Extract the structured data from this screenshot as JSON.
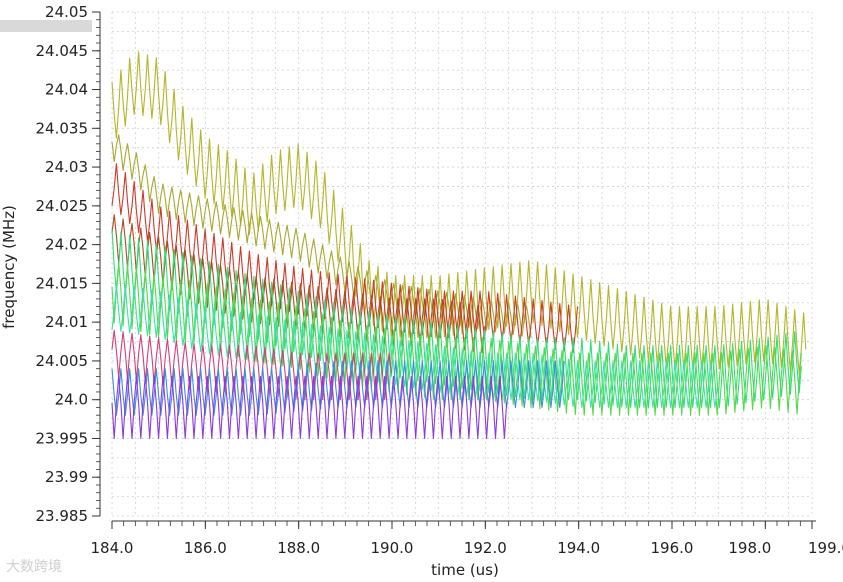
{
  "chart_data": {
    "type": "line",
    "title": "",
    "xlabel": "time (us)",
    "ylabel": "frequency (MHz)",
    "xlim": [
      184.0,
      199.0
    ],
    "ylim": [
      23.985,
      24.05
    ],
    "x_tick_labels": [
      "184.0",
      "186.0",
      "188.0",
      "190.0",
      "192.0",
      "194.0",
      "196.0",
      "198.0",
      "199.0"
    ],
    "x_tick_values": [
      184.0,
      186.0,
      188.0,
      190.0,
      192.0,
      194.0,
      196.0,
      198.0,
      199.0
    ],
    "y_tick_labels": [
      "23.985",
      "23.99",
      "23.995",
      "24.0",
      "24.005",
      "24.01",
      "24.015",
      "24.02",
      "24.025",
      "24.03",
      "24.035",
      "24.04",
      "24.045",
      "24.05"
    ],
    "y_tick_values": [
      23.985,
      23.99,
      23.995,
      24.0,
      24.005,
      24.01,
      24.015,
      24.02,
      24.025,
      24.03,
      24.035,
      24.04,
      24.045,
      24.05
    ],
    "grid": true,
    "series": [
      {
        "color": "#b5b52a",
        "x": [
          184.0,
          184.5,
          185.0,
          185.5,
          186.0,
          186.5,
          187.0,
          187.5,
          188.0,
          188.5,
          189.0,
          189.5,
          190.0,
          191.0,
          192.0,
          193.0,
          194.0,
          195.0,
          196.0,
          197.0,
          198.0,
          198.9
        ],
        "y": [
          24.037,
          24.041,
          24.04,
          24.034,
          24.03,
          24.028,
          24.025,
          24.028,
          24.029,
          24.026,
          24.02,
          24.014,
          24.012,
          24.012,
          24.013,
          24.014,
          24.012,
          24.01,
          24.008,
          24.008,
          24.009,
          24.007
        ],
        "amplitude": 0.004
      },
      {
        "color": "#a8a830",
        "x": [
          184.0,
          184.5,
          185.0,
          186.0,
          187.0,
          188.0,
          189.0,
          190.0,
          191.0,
          192.0,
          193.0
        ],
        "y": [
          24.033,
          24.03,
          24.026,
          24.024,
          24.022,
          24.02,
          24.016,
          24.013,
          24.012,
          24.011,
          24.01
        ],
        "amplitude": 0.002
      },
      {
        "color": "#cc3a2a",
        "x": [
          184.0,
          184.5,
          185.0,
          186.0,
          187.0,
          188.0,
          189.0,
          190.0,
          191.0,
          192.0,
          193.0,
          194.0
        ],
        "y": [
          24.028,
          24.025,
          24.022,
          24.019,
          24.016,
          24.014,
          24.013,
          24.012,
          24.011,
          24.011,
          24.01,
          24.009
        ],
        "amplitude": 0.003
      },
      {
        "color": "#b04a20",
        "x": [
          184.0,
          185.0,
          186.0,
          187.0,
          188.0,
          189.0,
          190.0,
          191.0,
          192.0
        ],
        "y": [
          24.021,
          24.018,
          24.015,
          24.013,
          24.012,
          24.011,
          24.01,
          24.01,
          24.009
        ],
        "amplitude": 0.003
      },
      {
        "color": "#2ee07a",
        "x": [
          184.0,
          185.0,
          186.0,
          187.0,
          188.0,
          189.0,
          190.0,
          191.0,
          192.0,
          193.0,
          194.0,
          195.0,
          196.0,
          197.0,
          198.0,
          198.8
        ],
        "y": [
          24.018,
          24.016,
          24.014,
          24.012,
          24.01,
          24.008,
          24.007,
          24.006,
          24.005,
          24.004,
          24.004,
          24.003,
          24.003,
          24.003,
          24.004,
          24.005
        ],
        "amplitude": 0.004
      },
      {
        "color": "#55d84a",
        "x": [
          184.0,
          185.0,
          186.0,
          187.0,
          188.0,
          189.0,
          190.0,
          191.0,
          192.0,
          193.0,
          194.0,
          195.0,
          196.0,
          197.0,
          198.0,
          198.8
        ],
        "y": [
          24.014,
          24.012,
          24.011,
          24.009,
          24.008,
          24.006,
          24.005,
          24.004,
          24.004,
          24.003,
          24.002,
          24.002,
          24.002,
          24.002,
          24.003,
          24.002
        ],
        "amplitude": 0.004
      },
      {
        "color": "#3fe0a8",
        "x": [
          184.0,
          185.0,
          186.0,
          187.0,
          188.0,
          189.0,
          190.0,
          191.0,
          192.0,
          193.0,
          194.0,
          195.0,
          196.0,
          197.0
        ],
        "y": [
          24.012,
          24.011,
          24.009,
          24.008,
          24.007,
          24.006,
          24.005,
          24.004,
          24.003,
          24.003,
          24.002,
          24.002,
          24.002,
          24.002
        ],
        "amplitude": 0.003
      },
      {
        "color": "#d2407a",
        "x": [
          184.0,
          185.0,
          186.0,
          187.0,
          188.0,
          189.0,
          190.0
        ],
        "y": [
          24.006,
          24.005,
          24.004,
          24.004,
          24.003,
          24.003,
          24.003
        ],
        "amplitude": 0.003
      },
      {
        "color": "#3c8ce0",
        "x": [
          184.0,
          185.0,
          186.0,
          187.0,
          188.0,
          189.0,
          190.0,
          191.0,
          192.0,
          193.0,
          193.7
        ],
        "y": [
          24.001,
          24.001,
          24.001,
          24.001,
          24.0015,
          24.002,
          24.002,
          24.002,
          24.002,
          24.002,
          24.002
        ],
        "amplitude": 0.003
      },
      {
        "color": "#8a3ae0",
        "x": [
          184.0,
          185.0,
          186.0,
          187.0,
          188.0,
          189.0,
          190.0,
          191.0,
          192.0,
          192.5
        ],
        "y": [
          23.999,
          23.999,
          23.999,
          23.999,
          23.999,
          23.999,
          23.999,
          23.999,
          23.999,
          23.999
        ],
        "amplitude": 0.004
      }
    ]
  },
  "watermark": "大数跨境"
}
